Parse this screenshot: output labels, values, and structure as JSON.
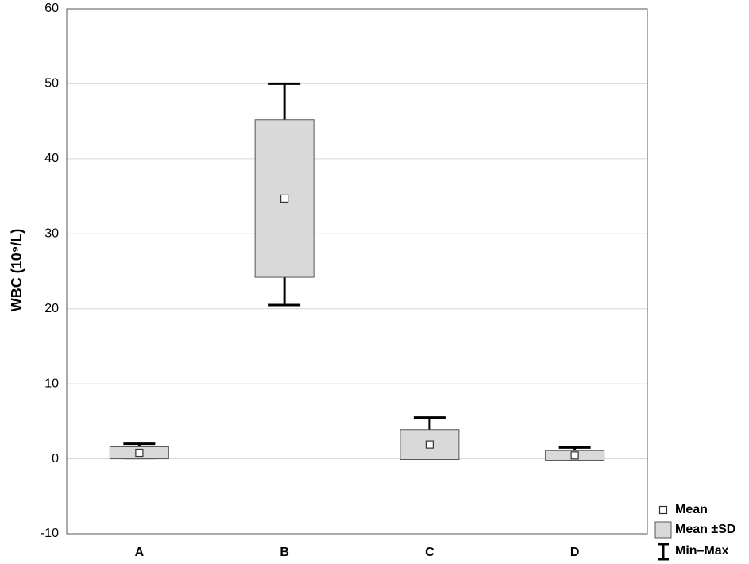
{
  "chart_data": {
    "type": "boxplot",
    "y_label": "WBC (10⁹/L)",
    "categories": [
      "A",
      "B",
      "C",
      "D"
    ],
    "mean": [
      0.8,
      34.7,
      1.9,
      0.45
    ],
    "sd": [
      0.8,
      10.5,
      2.0,
      0.65
    ],
    "min": [
      0.1,
      20.5,
      0.1,
      0.1
    ],
    "max": [
      2.0,
      50.0,
      5.5,
      1.5
    ],
    "box_color": "#d9d9d9",
    "legend": [
      "Mean",
      "Mean ±SD",
      "Min–Max"
    ],
    "ylim": [
      -10,
      60
    ],
    "yticks": [
      -10,
      0,
      10,
      20,
      30,
      40,
      50,
      60
    ],
    "grid": true
  }
}
